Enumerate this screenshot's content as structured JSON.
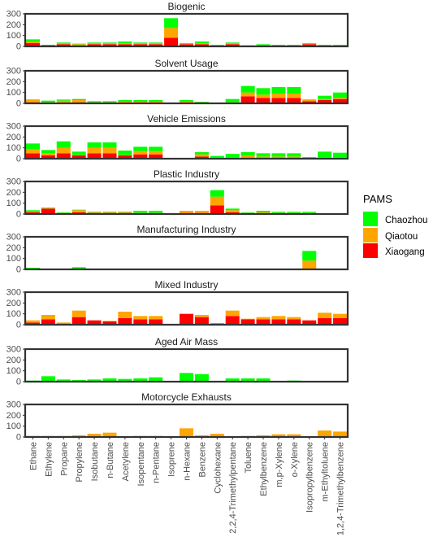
{
  "legend": {
    "title": "PAMS",
    "items": [
      {
        "name": "Chaozhou",
        "color": "#00ff00"
      },
      {
        "name": "Qiaotou",
        "color": "#ffa500"
      },
      {
        "name": "Xiaogang",
        "color": "#ff0000"
      }
    ]
  },
  "chart_data": {
    "type": "bar",
    "stacked": true,
    "yticks": [
      0,
      100,
      200,
      300
    ],
    "ylim": [
      0,
      300
    ],
    "categories": [
      "Ethane",
      "Ethylene",
      "Propane",
      "Propylene",
      "Isobutane",
      "n-Butane",
      "Acetylene",
      "Isopentane",
      "n-Pentane",
      "Isoprene",
      "n-Hexane",
      "Benzene",
      "Cyclohexane",
      "2,2,4-Trimethylpentane",
      "Toluene",
      "Ethylbenzene",
      "m,p-Xylene",
      "o-Xylene",
      "Isopropylbenzene",
      "m-Ethyltoluene",
      "1,2,4-Trimethylbenzene"
    ],
    "panels": [
      {
        "title": "Biogenic",
        "series": [
          {
            "name": "Xiaogang",
            "values": [
              30,
              10,
              20,
              10,
              20,
              20,
              20,
              20,
              20,
              80,
              20,
              20,
              5,
              20,
              5,
              5,
              5,
              5,
              20,
              5,
              5
            ]
          },
          {
            "name": "Qiaotou",
            "values": [
              15,
              0,
              10,
              10,
              10,
              10,
              10,
              10,
              10,
              90,
              5,
              10,
              5,
              10,
              0,
              5,
              5,
              5,
              5,
              5,
              5
            ]
          },
          {
            "name": "Chaozhou",
            "values": [
              20,
              5,
              5,
              5,
              5,
              5,
              15,
              5,
              5,
              90,
              5,
              15,
              5,
              5,
              5,
              10,
              5,
              5,
              5,
              5,
              5
            ]
          }
        ]
      },
      {
        "title": "Solvent Usage",
        "series": [
          {
            "name": "Xiaogang",
            "values": [
              10,
              5,
              5,
              10,
              5,
              5,
              5,
              5,
              5,
              0,
              5,
              5,
              0,
              5,
              65,
              50,
              50,
              50,
              20,
              30,
              40
            ]
          },
          {
            "name": "Qiaotou",
            "values": [
              20,
              5,
              20,
              20,
              5,
              5,
              10,
              10,
              10,
              0,
              10,
              5,
              0,
              5,
              35,
              30,
              40,
              40,
              10,
              10,
              10
            ]
          },
          {
            "name": "Chaozhou",
            "values": [
              5,
              15,
              10,
              10,
              10,
              10,
              15,
              15,
              15,
              0,
              15,
              5,
              0,
              30,
              60,
              60,
              60,
              60,
              5,
              30,
              50
            ]
          }
        ]
      },
      {
        "title": "Vehicle Emissions",
        "series": [
          {
            "name": "Xiaogang",
            "values": [
              50,
              30,
              50,
              30,
              50,
              50,
              30,
              40,
              40,
              0,
              0,
              20,
              10,
              10,
              10,
              10,
              10,
              10,
              10,
              10,
              10
            ]
          },
          {
            "name": "Qiaotou",
            "values": [
              40,
              20,
              50,
              5,
              50,
              50,
              5,
              30,
              30,
              0,
              0,
              20,
              5,
              5,
              20,
              10,
              10,
              10,
              5,
              5,
              5
            ]
          },
          {
            "name": "Chaozhou",
            "values": [
              50,
              30,
              60,
              30,
              50,
              50,
              40,
              40,
              40,
              0,
              0,
              20,
              10,
              30,
              30,
              30,
              30,
              30,
              0,
              50,
              40
            ]
          }
        ]
      },
      {
        "title": "Plastic Industry",
        "series": [
          {
            "name": "Xiaogang",
            "values": [
              15,
              50,
              5,
              15,
              10,
              10,
              10,
              5,
              5,
              0,
              10,
              10,
              80,
              15,
              5,
              5,
              5,
              5,
              5,
              0,
              0
            ]
          },
          {
            "name": "Qiaotou",
            "values": [
              5,
              5,
              5,
              20,
              5,
              5,
              5,
              5,
              5,
              0,
              20,
              20,
              80,
              20,
              5,
              10,
              5,
              5,
              5,
              0,
              0
            ]
          },
          {
            "name": "Chaozhou",
            "values": [
              15,
              5,
              5,
              5,
              5,
              5,
              5,
              20,
              20,
              0,
              0,
              0,
              60,
              15,
              5,
              15,
              10,
              10,
              10,
              0,
              0
            ]
          }
        ]
      },
      {
        "title": "Manufacturing Industry",
        "series": [
          {
            "name": "Xiaogang",
            "values": [
              0,
              0,
              0,
              0,
              0,
              0,
              0,
              0,
              0,
              0,
              0,
              0,
              0,
              0,
              0,
              0,
              0,
              0,
              0,
              0,
              0
            ]
          },
          {
            "name": "Qiaotou",
            "values": [
              0,
              0,
              0,
              0,
              0,
              0,
              0,
              0,
              0,
              0,
              0,
              0,
              0,
              0,
              0,
              0,
              0,
              0,
              80,
              0,
              0
            ]
          },
          {
            "name": "Chaozhou",
            "values": [
              15,
              0,
              0,
              20,
              0,
              0,
              0,
              0,
              0,
              0,
              0,
              0,
              0,
              0,
              0,
              0,
              0,
              0,
              90,
              0,
              0
            ]
          }
        ]
      },
      {
        "title": "Mixed Industry",
        "series": [
          {
            "name": "Xiaogang",
            "values": [
              20,
              50,
              10,
              70,
              40,
              30,
              60,
              50,
              50,
              0,
              100,
              70,
              10,
              80,
              50,
              50,
              50,
              50,
              40,
              60,
              60
            ]
          },
          {
            "name": "Qiaotou",
            "values": [
              20,
              40,
              10,
              60,
              0,
              5,
              60,
              30,
              30,
              0,
              0,
              20,
              5,
              50,
              5,
              20,
              30,
              20,
              0,
              50,
              40
            ]
          },
          {
            "name": "Chaozhou",
            "values": [
              0,
              0,
              0,
              0,
              0,
              0,
              0,
              0,
              0,
              0,
              0,
              0,
              0,
              0,
              0,
              0,
              0,
              0,
              0,
              0,
              0
            ]
          }
        ]
      },
      {
        "title": "Aged Air Mass",
        "series": [
          {
            "name": "Xiaogang",
            "values": [
              0,
              0,
              0,
              0,
              0,
              0,
              0,
              0,
              0,
              0,
              0,
              0,
              0,
              0,
              0,
              0,
              0,
              0,
              0,
              0,
              0
            ]
          },
          {
            "name": "Qiaotou",
            "values": [
              0,
              0,
              0,
              0,
              0,
              0,
              0,
              0,
              0,
              0,
              0,
              0,
              0,
              0,
              0,
              0,
              0,
              0,
              0,
              0,
              0
            ]
          },
          {
            "name": "Chaozhou",
            "values": [
              10,
              50,
              20,
              15,
              20,
              30,
              25,
              30,
              40,
              0,
              80,
              70,
              0,
              30,
              30,
              30,
              0,
              10,
              0,
              0,
              0
            ]
          }
        ]
      },
      {
        "title": "Motorcycle Exhausts",
        "series": [
          {
            "name": "Xiaogang",
            "values": [
              0,
              0,
              0,
              0,
              0,
              0,
              0,
              0,
              0,
              0,
              0,
              0,
              0,
              0,
              0,
              0,
              0,
              0,
              0,
              0,
              0
            ]
          },
          {
            "name": "Qiaotou",
            "values": [
              10,
              10,
              10,
              15,
              30,
              40,
              5,
              10,
              10,
              5,
              80,
              15,
              30,
              5,
              10,
              15,
              25,
              25,
              5,
              60,
              50
            ]
          },
          {
            "name": "Chaozhou",
            "values": [
              0,
              0,
              0,
              0,
              0,
              0,
              0,
              0,
              0,
              0,
              0,
              0,
              0,
              0,
              0,
              0,
              0,
              0,
              0,
              0,
              0
            ]
          }
        ]
      }
    ]
  }
}
